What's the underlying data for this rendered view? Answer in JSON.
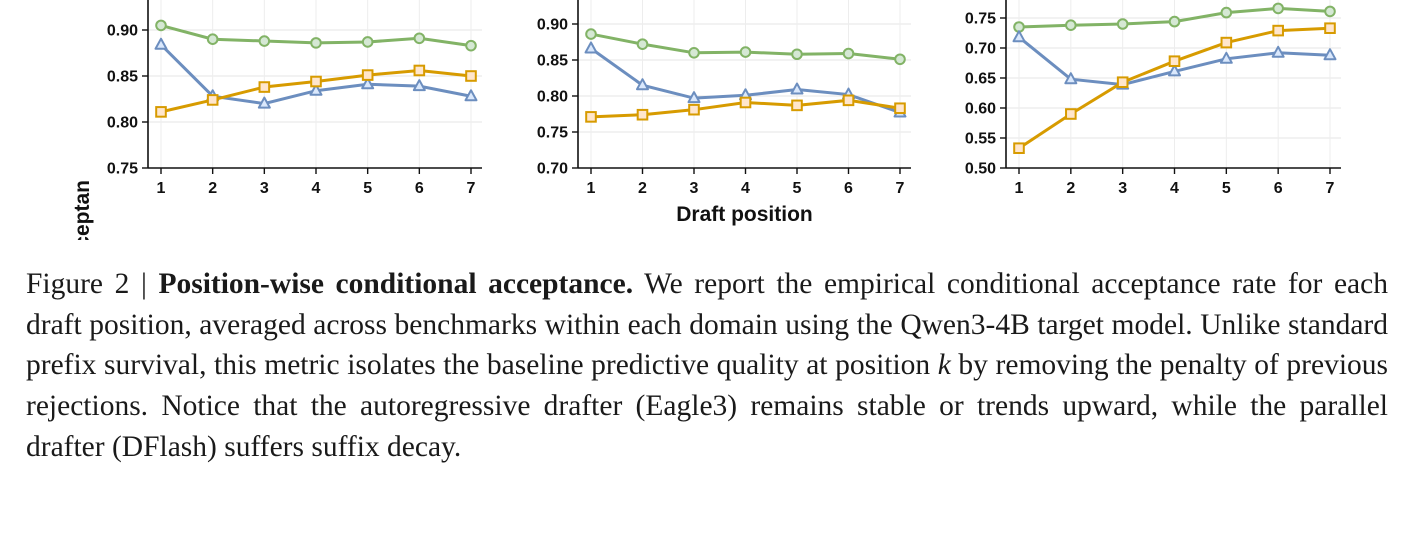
{
  "chart_data": [
    {
      "type": "line",
      "ylabel": "Cond. acceptan",
      "xlabel": "",
      "ylim": [
        0.75,
        0.92
      ],
      "yticks": [
        0.75,
        0.8,
        0.85,
        0.9
      ],
      "x": [
        1,
        2,
        3,
        4,
        5,
        6,
        7
      ],
      "grid": true,
      "series": [
        {
          "color": "#82b366",
          "marker": "circle",
          "values": [
            0.905,
            0.89,
            0.888,
            0.886,
            0.887,
            0.891,
            0.883
          ]
        },
        {
          "color": "#6c8ebf",
          "marker": "triangle",
          "values": [
            0.884,
            0.828,
            0.82,
            0.834,
            0.841,
            0.839,
            0.828
          ]
        },
        {
          "color": "#d79b00",
          "marker": "square",
          "values": [
            0.811,
            0.824,
            0.838,
            0.844,
            0.851,
            0.856,
            0.85
          ]
        }
      ]
    },
    {
      "type": "line",
      "ylabel": "",
      "xlabel": "Draft position",
      "ylim": [
        0.7,
        0.91
      ],
      "yticks": [
        0.7,
        0.75,
        0.8,
        0.85,
        0.9
      ],
      "x": [
        1,
        2,
        3,
        4,
        5,
        6,
        7
      ],
      "grid": true,
      "series": [
        {
          "color": "#82b366",
          "marker": "circle",
          "values": [
            0.886,
            0.872,
            0.86,
            0.861,
            0.858,
            0.859,
            0.851
          ]
        },
        {
          "color": "#6c8ebf",
          "marker": "triangle",
          "values": [
            0.866,
            0.815,
            0.797,
            0.801,
            0.809,
            0.802,
            0.777
          ]
        },
        {
          "color": "#d79b00",
          "marker": "square",
          "values": [
            0.771,
            0.774,
            0.781,
            0.791,
            0.787,
            0.794,
            0.783
          ]
        }
      ]
    },
    {
      "type": "line",
      "ylabel": "",
      "xlabel": "",
      "ylim": [
        0.5,
        0.775
      ],
      "yticks": [
        0.5,
        0.55,
        0.6,
        0.65,
        0.7,
        0.75
      ],
      "x": [
        1,
        2,
        3,
        4,
        5,
        6,
        7
      ],
      "grid": true,
      "series": [
        {
          "color": "#82b366",
          "marker": "circle",
          "values": [
            0.735,
            0.738,
            0.74,
            0.744,
            0.759,
            0.766,
            0.761
          ]
        },
        {
          "color": "#6c8ebf",
          "marker": "triangle",
          "values": [
            0.718,
            0.648,
            0.639,
            0.661,
            0.682,
            0.692,
            0.688
          ]
        },
        {
          "color": "#d79b00",
          "marker": "square",
          "values": [
            0.533,
            0.59,
            0.643,
            0.678,
            0.709,
            0.729,
            0.733
          ]
        }
      ]
    }
  ],
  "caption": {
    "prefix": "Figure 2 | ",
    "title": "Position-wise conditional acceptance.",
    "text_before_k": " We report the empirical conditional acceptance rate for each draft position, averaged across benchmarks within each domain using the Qwen3-4B target model. Unlike standard prefix survival, this metric isolates the baseline predictive quality at position ",
    "k": "k",
    "text_after_k": " by removing the penalty of previous rejections. Notice that the autoregressive drafter (Eagle3) remains stable or trends upward, while the parallel drafter (DFlash) suffers suffix decay."
  }
}
